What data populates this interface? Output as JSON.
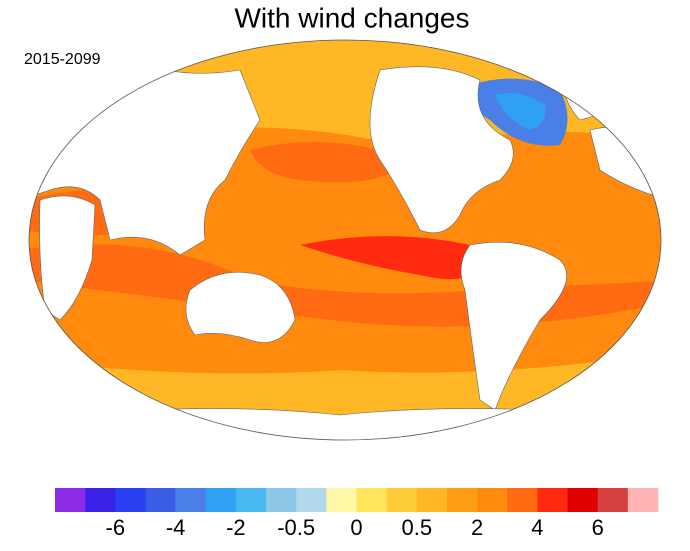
{
  "title": "With wind changes",
  "subtitle": "2015-2099",
  "colorbar": {
    "colors": [
      "#8b2be6",
      "#3a22e8",
      "#2a3ef2",
      "#3a5fe6",
      "#4a7fe8",
      "#2fa0f2",
      "#4ab8f0",
      "#8cc8e6",
      "#b2d8ec",
      "#fff7a6",
      "#ffe55c",
      "#ffcd3a",
      "#ffb726",
      "#ff9d14",
      "#ff8a0e",
      "#ff6a12",
      "#ff2a10",
      "#e00000",
      "#d64040",
      "#ffb3b3"
    ],
    "labels": [
      -6,
      -4,
      -2,
      -0.5,
      0,
      0.5,
      2,
      4,
      6
    ]
  }
}
